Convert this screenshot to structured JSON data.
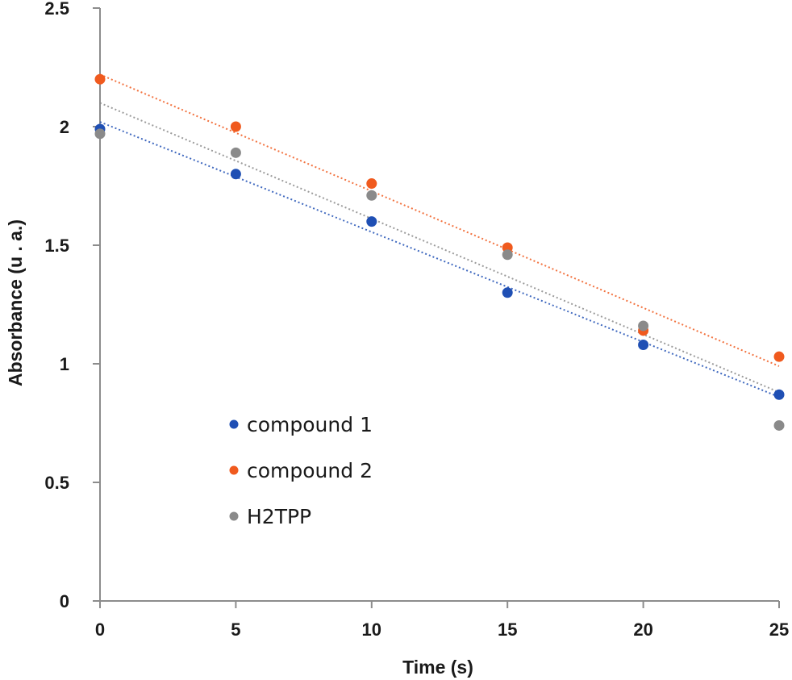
{
  "chart_data": {
    "type": "scatter",
    "xlabel": "Time (s)",
    "ylabel": "Absorbance (u . a.)",
    "xlim": [
      0,
      25
    ],
    "ylim": [
      0,
      2.5
    ],
    "xticks": [
      "0",
      "5",
      "10",
      "15",
      "20",
      "25"
    ],
    "yticks": [
      "0",
      "0.5",
      "1",
      "1.5",
      "2",
      "2.5"
    ],
    "grid": false,
    "legend_position": "lower-left",
    "trendlines": "dotted linear fit per series",
    "series": [
      {
        "name": "compound 1",
        "color": "#1f4fb4",
        "x": [
          0,
          5,
          10,
          15,
          20,
          25
        ],
        "y": [
          1.99,
          1.8,
          1.6,
          1.3,
          1.08,
          0.87
        ],
        "fit": {
          "y_start": 2.02,
          "y_end": 0.86
        }
      },
      {
        "name": "compound 2",
        "color": "#f05a1e",
        "x": [
          0,
          5,
          10,
          15,
          20,
          25
        ],
        "y": [
          2.2,
          2.0,
          1.76,
          1.49,
          1.14,
          1.03
        ],
        "fit": {
          "y_start": 2.22,
          "y_end": 0.99
        }
      },
      {
        "name": "H2TPP",
        "color": "#8a8a8a",
        "x": [
          0,
          5,
          10,
          15,
          20,
          25
        ],
        "y": [
          1.97,
          1.89,
          1.71,
          1.46,
          1.16,
          0.74
        ],
        "fit": {
          "y_start": 2.1,
          "y_end": 0.88
        }
      }
    ]
  }
}
